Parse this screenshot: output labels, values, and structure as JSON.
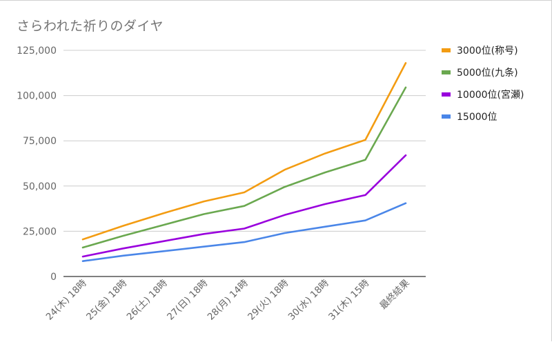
{
  "chart_data": {
    "type": "line",
    "title": "さらわれた祈りのダイヤ",
    "xlabel": "",
    "ylabel": "",
    "categories": [
      "24(木) 18時",
      "25(金) 18時",
      "26(土) 18時",
      "27(日) 18時",
      "28(月) 14時",
      "29(火) 18時",
      "30(水) 18時",
      "31(木) 15時",
      "最終結果"
    ],
    "ylim": [
      0,
      125000
    ],
    "yticks": [
      0,
      25000,
      50000,
      75000,
      100000,
      125000
    ],
    "ytick_labels": [
      "0",
      "25,000",
      "50,000",
      "75,000",
      "100,000",
      "125,000"
    ],
    "grid": true,
    "legend_position": "right",
    "series": [
      {
        "name": "3000位(称号)",
        "color": "#f39c12",
        "values": [
          20500,
          28000,
          35000,
          41500,
          46500,
          59000,
          68000,
          75500,
          118000
        ]
      },
      {
        "name": "5000位(九条)",
        "color": "#6aa84f",
        "values": [
          16000,
          22500,
          28500,
          34500,
          39000,
          49500,
          57500,
          64500,
          104500
        ]
      },
      {
        "name": "10000位(宮瀬)",
        "color": "#9900dd",
        "values": [
          11000,
          15500,
          19500,
          23500,
          26500,
          34000,
          40000,
          45000,
          67000
        ]
      },
      {
        "name": "15000位",
        "color": "#4a86e8",
        "values": [
          8500,
          11500,
          14000,
          16500,
          19000,
          24000,
          27500,
          31000,
          40500
        ]
      }
    ]
  }
}
